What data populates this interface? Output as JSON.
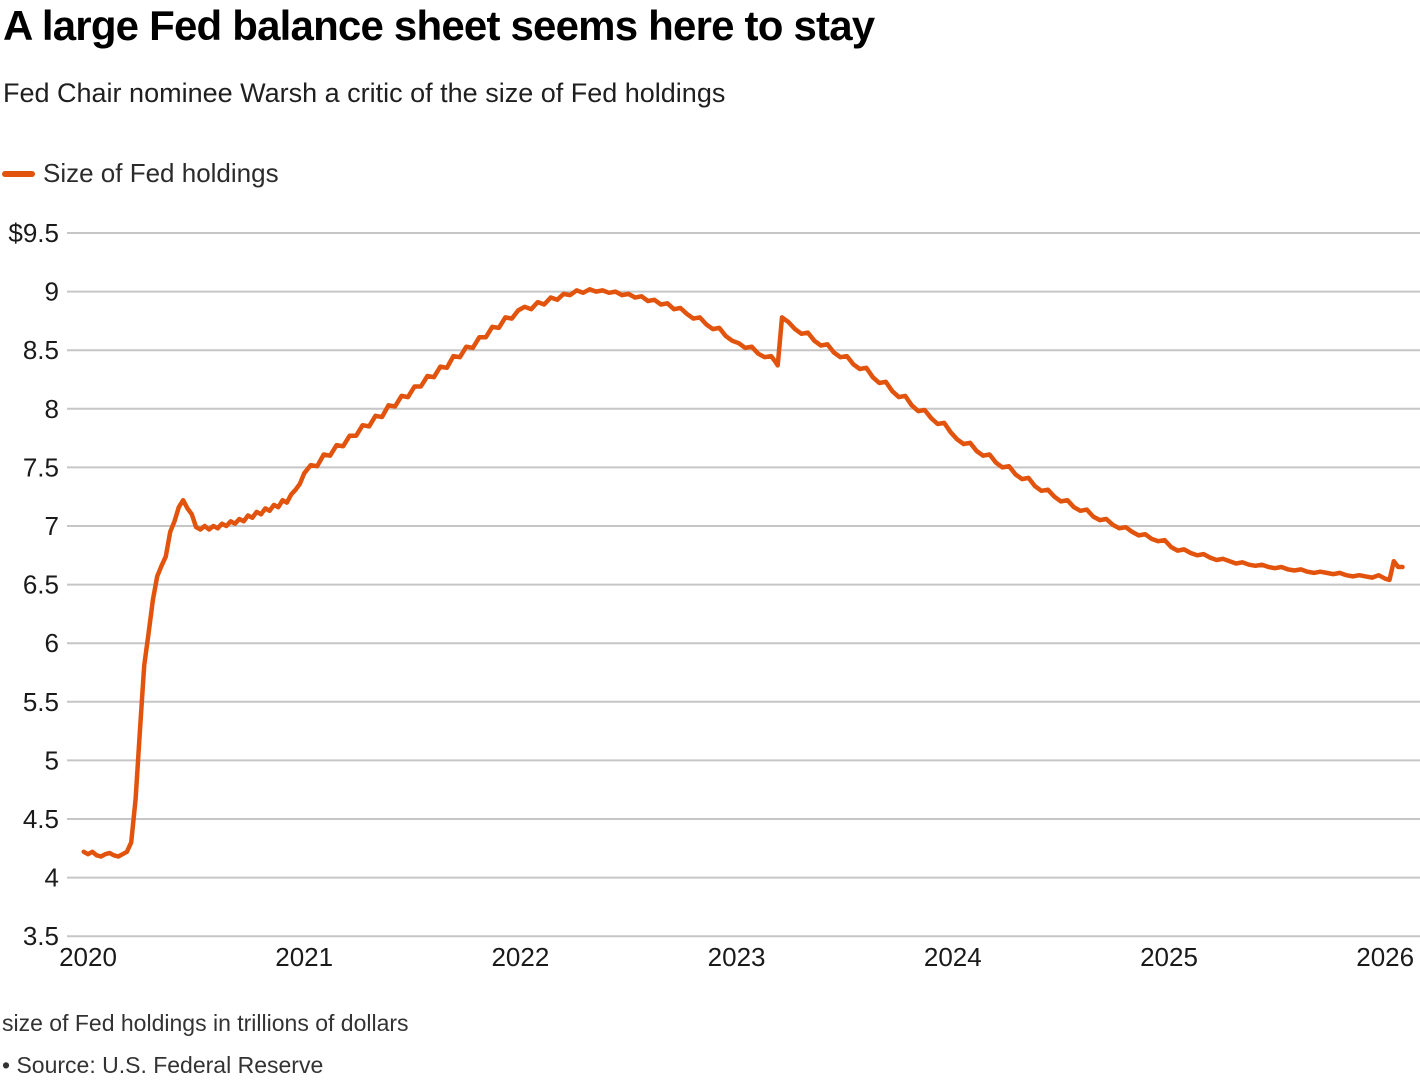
{
  "header": {
    "title": "A large Fed balance sheet seems here to stay",
    "subtitle": "Fed Chair nominee Warsh a critic of the size of Fed holdings"
  },
  "legend": {
    "label": "Size of Fed holdings"
  },
  "footnotes": {
    "note": "size of Fed holdings in trillions of dollars",
    "source": "• Source: U.S. Federal Reserve"
  },
  "colors": {
    "line": "#e2540e",
    "grid": "#c6c6c6",
    "title_text": "#000000",
    "axis_text": "#1a1a1a",
    "footnote_text": "#333333"
  },
  "chart_data": {
    "type": "line",
    "title": "A large Fed balance sheet seems here to stay",
    "subtitle": "Fed Chair nominee Warsh a critic of the size of Fed holdings",
    "xlabel": "",
    "ylabel": "size of Fed holdings in trillions of dollars",
    "units": "trillions of dollars",
    "xlim": [
      2019.9,
      2026.16
    ],
    "ylim": [
      3.5,
      9.5
    ],
    "grid": "horizontal-only",
    "legend_position": "top-left",
    "x_ticks": [
      {
        "year": 2020,
        "label": "2020"
      },
      {
        "year": 2021,
        "label": "2021"
      },
      {
        "year": 2022,
        "label": "2022"
      },
      {
        "year": 2023,
        "label": "2023"
      },
      {
        "year": 2024,
        "label": "2024"
      },
      {
        "year": 2025,
        "label": "2025"
      },
      {
        "year": 2026,
        "label": "2026"
      }
    ],
    "y_ticks": [
      {
        "v": 9.5,
        "label": "$9.5"
      },
      {
        "v": 9.0,
        "label": "9"
      },
      {
        "v": 8.5,
        "label": "8.5"
      },
      {
        "v": 8.0,
        "label": "8"
      },
      {
        "v": 7.5,
        "label": "7.5"
      },
      {
        "v": 7.0,
        "label": "7"
      },
      {
        "v": 6.5,
        "label": "6.5"
      },
      {
        "v": 6.0,
        "label": "6"
      },
      {
        "v": 5.5,
        "label": "5.5"
      },
      {
        "v": 5.0,
        "label": "5"
      },
      {
        "v": 4.5,
        "label": "4.5"
      },
      {
        "v": 4.0,
        "label": "4"
      },
      {
        "v": 3.5,
        "label": "3.5"
      }
    ],
    "series": [
      {
        "name": "Size of Fed holdings",
        "color": "#e2540e",
        "points": [
          [
            2019.98,
            4.22
          ],
          [
            2020.0,
            4.2
          ],
          [
            2020.02,
            4.22
          ],
          [
            2020.04,
            4.19
          ],
          [
            2020.06,
            4.18
          ],
          [
            2020.08,
            4.2
          ],
          [
            2020.1,
            4.21
          ],
          [
            2020.12,
            4.19
          ],
          [
            2020.14,
            4.18
          ],
          [
            2020.16,
            4.2
          ],
          [
            2020.18,
            4.22
          ],
          [
            2020.2,
            4.3
          ],
          [
            2020.22,
            4.67
          ],
          [
            2020.24,
            5.25
          ],
          [
            2020.26,
            5.81
          ],
          [
            2020.28,
            6.08
          ],
          [
            2020.3,
            6.37
          ],
          [
            2020.32,
            6.57
          ],
          [
            2020.34,
            6.66
          ],
          [
            2020.36,
            6.74
          ],
          [
            2020.38,
            6.95
          ],
          [
            2020.4,
            7.04
          ],
          [
            2020.42,
            7.16
          ],
          [
            2020.44,
            7.22
          ],
          [
            2020.46,
            7.15
          ],
          [
            2020.48,
            7.1
          ],
          [
            2020.5,
            6.99
          ],
          [
            2020.52,
            6.97
          ],
          [
            2020.54,
            7.0
          ],
          [
            2020.56,
            6.97
          ],
          [
            2020.58,
            7.0
          ],
          [
            2020.6,
            6.98
          ],
          [
            2020.62,
            7.02
          ],
          [
            2020.64,
            7.0
          ],
          [
            2020.66,
            7.04
          ],
          [
            2020.68,
            7.02
          ],
          [
            2020.7,
            7.06
          ],
          [
            2020.72,
            7.04
          ],
          [
            2020.74,
            7.09
          ],
          [
            2020.76,
            7.07
          ],
          [
            2020.78,
            7.12
          ],
          [
            2020.8,
            7.1
          ],
          [
            2020.82,
            7.15
          ],
          [
            2020.84,
            7.13
          ],
          [
            2020.86,
            7.18
          ],
          [
            2020.88,
            7.16
          ],
          [
            2020.9,
            7.22
          ],
          [
            2020.92,
            7.2
          ],
          [
            2020.94,
            7.27
          ],
          [
            2020.96,
            7.31
          ],
          [
            2020.98,
            7.36
          ],
          [
            2021.0,
            7.45
          ],
          [
            2021.03,
            7.52
          ],
          [
            2021.06,
            7.51
          ],
          [
            2021.09,
            7.61
          ],
          [
            2021.12,
            7.6
          ],
          [
            2021.15,
            7.69
          ],
          [
            2021.18,
            7.68
          ],
          [
            2021.21,
            7.77
          ],
          [
            2021.24,
            7.77
          ],
          [
            2021.27,
            7.86
          ],
          [
            2021.3,
            7.85
          ],
          [
            2021.33,
            7.94
          ],
          [
            2021.36,
            7.93
          ],
          [
            2021.39,
            8.03
          ],
          [
            2021.42,
            8.02
          ],
          [
            2021.45,
            8.11
          ],
          [
            2021.48,
            8.1
          ],
          [
            2021.51,
            8.19
          ],
          [
            2021.54,
            8.19
          ],
          [
            2021.57,
            8.28
          ],
          [
            2021.6,
            8.27
          ],
          [
            2021.63,
            8.36
          ],
          [
            2021.66,
            8.35
          ],
          [
            2021.69,
            8.45
          ],
          [
            2021.72,
            8.44
          ],
          [
            2021.75,
            8.53
          ],
          [
            2021.78,
            8.52
          ],
          [
            2021.81,
            8.61
          ],
          [
            2021.84,
            8.61
          ],
          [
            2021.87,
            8.7
          ],
          [
            2021.9,
            8.69
          ],
          [
            2021.93,
            8.78
          ],
          [
            2021.96,
            8.77
          ],
          [
            2021.99,
            8.84
          ],
          [
            2022.02,
            8.87
          ],
          [
            2022.05,
            8.85
          ],
          [
            2022.08,
            8.91
          ],
          [
            2022.11,
            8.89
          ],
          [
            2022.14,
            8.95
          ],
          [
            2022.17,
            8.93
          ],
          [
            2022.2,
            8.98
          ],
          [
            2022.23,
            8.97
          ],
          [
            2022.26,
            9.01
          ],
          [
            2022.29,
            8.99
          ],
          [
            2022.32,
            9.02
          ],
          [
            2022.35,
            9.0
          ],
          [
            2022.38,
            9.01
          ],
          [
            2022.41,
            8.99
          ],
          [
            2022.44,
            9.0
          ],
          [
            2022.47,
            8.97
          ],
          [
            2022.5,
            8.98
          ],
          [
            2022.53,
            8.95
          ],
          [
            2022.56,
            8.96
          ],
          [
            2022.59,
            8.92
          ],
          [
            2022.62,
            8.93
          ],
          [
            2022.65,
            8.89
          ],
          [
            2022.68,
            8.9
          ],
          [
            2022.71,
            8.85
          ],
          [
            2022.74,
            8.86
          ],
          [
            2022.77,
            8.81
          ],
          [
            2022.8,
            8.77
          ],
          [
            2022.83,
            8.78
          ],
          [
            2022.86,
            8.72
          ],
          [
            2022.89,
            8.68
          ],
          [
            2022.92,
            8.69
          ],
          [
            2022.95,
            8.62
          ],
          [
            2022.98,
            8.58
          ],
          [
            2023.01,
            8.56
          ],
          [
            2023.04,
            8.52
          ],
          [
            2023.07,
            8.53
          ],
          [
            2023.1,
            8.47
          ],
          [
            2023.13,
            8.44
          ],
          [
            2023.16,
            8.45
          ],
          [
            2023.18,
            8.4
          ],
          [
            2023.19,
            8.37
          ],
          [
            2023.21,
            8.78
          ],
          [
            2023.24,
            8.74
          ],
          [
            2023.27,
            8.68
          ],
          [
            2023.3,
            8.64
          ],
          [
            2023.33,
            8.65
          ],
          [
            2023.36,
            8.58
          ],
          [
            2023.39,
            8.54
          ],
          [
            2023.42,
            8.55
          ],
          [
            2023.45,
            8.48
          ],
          [
            2023.48,
            8.44
          ],
          [
            2023.51,
            8.45
          ],
          [
            2023.54,
            8.38
          ],
          [
            2023.57,
            8.34
          ],
          [
            2023.6,
            8.35
          ],
          [
            2023.63,
            8.27
          ],
          [
            2023.66,
            8.22
          ],
          [
            2023.69,
            8.23
          ],
          [
            2023.72,
            8.15
          ],
          [
            2023.75,
            8.1
          ],
          [
            2023.78,
            8.11
          ],
          [
            2023.81,
            8.03
          ],
          [
            2023.84,
            7.98
          ],
          [
            2023.87,
            7.99
          ],
          [
            2023.9,
            7.92
          ],
          [
            2023.93,
            7.87
          ],
          [
            2023.96,
            7.88
          ],
          [
            2023.99,
            7.8
          ],
          [
            2024.02,
            7.74
          ],
          [
            2024.05,
            7.7
          ],
          [
            2024.08,
            7.71
          ],
          [
            2024.11,
            7.64
          ],
          [
            2024.14,
            7.6
          ],
          [
            2024.17,
            7.61
          ],
          [
            2024.2,
            7.54
          ],
          [
            2024.23,
            7.5
          ],
          [
            2024.26,
            7.51
          ],
          [
            2024.29,
            7.44
          ],
          [
            2024.32,
            7.4
          ],
          [
            2024.35,
            7.41
          ],
          [
            2024.38,
            7.34
          ],
          [
            2024.41,
            7.3
          ],
          [
            2024.44,
            7.31
          ],
          [
            2024.47,
            7.25
          ],
          [
            2024.5,
            7.21
          ],
          [
            2024.53,
            7.22
          ],
          [
            2024.56,
            7.16
          ],
          [
            2024.59,
            7.13
          ],
          [
            2024.62,
            7.14
          ],
          [
            2024.65,
            7.08
          ],
          [
            2024.68,
            7.05
          ],
          [
            2024.71,
            7.06
          ],
          [
            2024.74,
            7.01
          ],
          [
            2024.77,
            6.98
          ],
          [
            2024.8,
            6.99
          ],
          [
            2024.83,
            6.95
          ],
          [
            2024.86,
            6.92
          ],
          [
            2024.89,
            6.93
          ],
          [
            2024.92,
            6.89
          ],
          [
            2024.95,
            6.87
          ],
          [
            2024.98,
            6.88
          ],
          [
            2025.01,
            6.82
          ],
          [
            2025.04,
            6.79
          ],
          [
            2025.07,
            6.8
          ],
          [
            2025.1,
            6.77
          ],
          [
            2025.13,
            6.75
          ],
          [
            2025.16,
            6.76
          ],
          [
            2025.19,
            6.73
          ],
          [
            2025.22,
            6.71
          ],
          [
            2025.25,
            6.72
          ],
          [
            2025.28,
            6.7
          ],
          [
            2025.31,
            6.68
          ],
          [
            2025.34,
            6.69
          ],
          [
            2025.37,
            6.67
          ],
          [
            2025.4,
            6.66
          ],
          [
            2025.43,
            6.67
          ],
          [
            2025.46,
            6.65
          ],
          [
            2025.49,
            6.64
          ],
          [
            2025.52,
            6.65
          ],
          [
            2025.55,
            6.63
          ],
          [
            2025.58,
            6.62
          ],
          [
            2025.61,
            6.63
          ],
          [
            2025.64,
            6.61
          ],
          [
            2025.67,
            6.6
          ],
          [
            2025.7,
            6.61
          ],
          [
            2025.73,
            6.6
          ],
          [
            2025.76,
            6.59
          ],
          [
            2025.79,
            6.6
          ],
          [
            2025.82,
            6.58
          ],
          [
            2025.85,
            6.57
          ],
          [
            2025.88,
            6.58
          ],
          [
            2025.91,
            6.57
          ],
          [
            2025.94,
            6.56
          ],
          [
            2025.97,
            6.58
          ],
          [
            2026.0,
            6.55
          ],
          [
            2026.02,
            6.54
          ],
          [
            2026.04,
            6.7
          ],
          [
            2026.06,
            6.65
          ],
          [
            2026.08,
            6.65
          ]
        ]
      }
    ]
  }
}
